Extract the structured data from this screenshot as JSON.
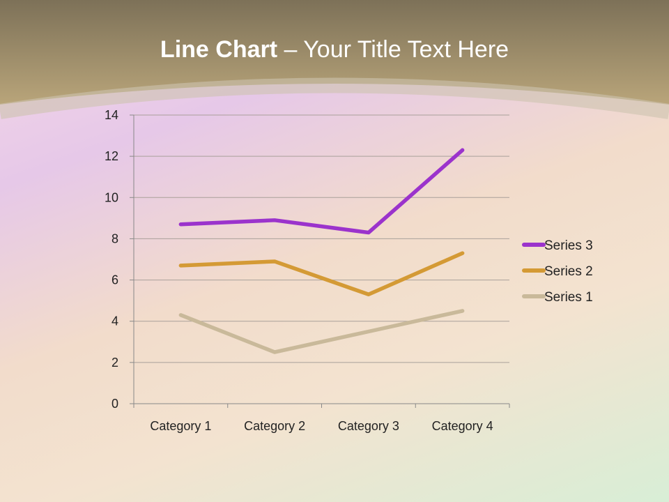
{
  "title": {
    "bold": "Line Chart",
    "rest": " – Your Title Text Here"
  },
  "chart_data": {
    "type": "line",
    "stacked": true,
    "categories": [
      "Category 1",
      "Category 2",
      "Category 3",
      "Category 4"
    ],
    "series": [
      {
        "name": "Series 1",
        "values": [
          4.3,
          2.5,
          3.5,
          4.5
        ],
        "color": "#c9b99a"
      },
      {
        "name": "Series 2",
        "values": [
          2.4,
          4.4,
          1.8,
          2.8
        ],
        "color": "#d49a35"
      },
      {
        "name": "Series 3",
        "values": [
          2,
          2,
          3,
          5
        ],
        "color": "#9b33cc"
      }
    ],
    "ylim": [
      0,
      14
    ],
    "yticks": [
      0,
      2,
      4,
      6,
      8,
      10,
      12,
      14
    ],
    "grid": true,
    "legend": "right"
  }
}
